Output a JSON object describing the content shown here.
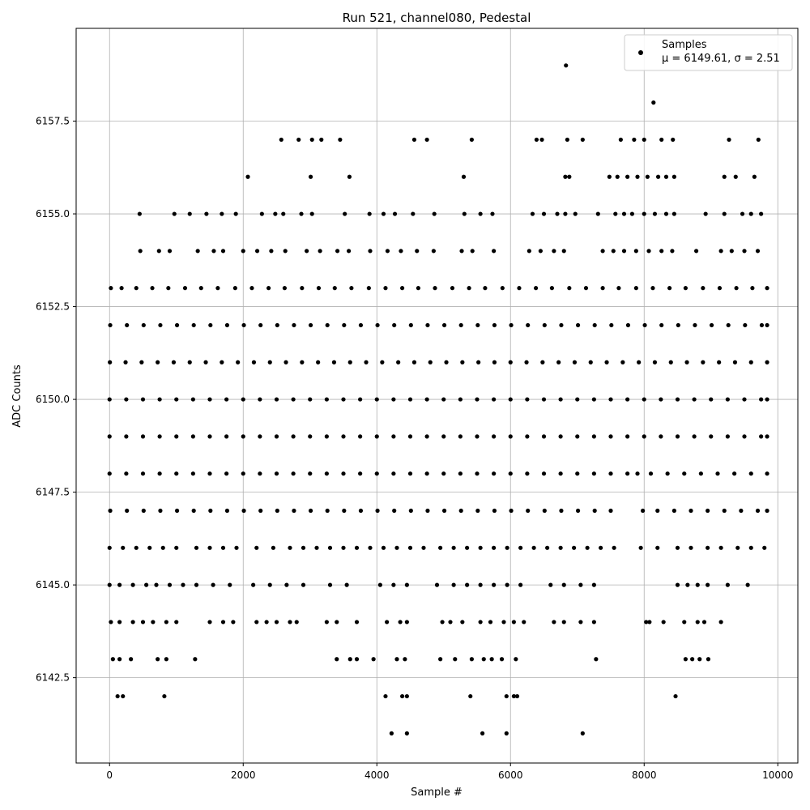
{
  "chart_data": {
    "type": "scatter",
    "title": "Run 521, channel080, Pedestal",
    "xlabel": "Sample #",
    "ylabel": "ADC Counts",
    "xlim": [
      -500,
      10300
    ],
    "ylim": [
      6140.2,
      6160.0
    ],
    "xticks": [
      0,
      2000,
      4000,
      6000,
      8000,
      10000
    ],
    "xtick_labels": [
      "0",
      "2000",
      "4000",
      "6000",
      "8000",
      "10000"
    ],
    "yticks": [
      6142.5,
      6145.0,
      6147.5,
      6150.0,
      6152.5,
      6155.0,
      6157.5
    ],
    "ytick_labels": [
      "6142.5",
      "6145.0",
      "6147.5",
      "6150.0",
      "6152.5",
      "6155.0",
      "6157.5"
    ],
    "grid": true,
    "legend": {
      "placement": "top-right",
      "label_line1": "Samples",
      "label_line2": "μ = 6149.61, σ = 2.51"
    },
    "marker_color": "#000000",
    "series": [
      {
        "name": "Samples",
        "x": [
          6830,
          8140,
          2570,
          2830,
          3030,
          3170,
          3450,
          4560,
          4750,
          5420,
          6390,
          6470,
          6850,
          7080,
          7650,
          7850,
          8000,
          8260,
          8430,
          9270,
          9710,
          2070,
          3010,
          3590,
          5300,
          6820,
          6880,
          7480,
          7600,
          7750,
          7900,
          8050,
          8210,
          8330,
          8450,
          9200,
          9370,
          9650,
          450,
          970,
          1200,
          1450,
          1680,
          1890,
          2280,
          2480,
          2600,
          2870,
          3030,
          3520,
          3890,
          4100,
          4270,
          4540,
          4860,
          5310,
          5550,
          5730,
          6330,
          6500,
          6700,
          6820,
          6970,
          7310,
          7570,
          7700,
          7820,
          8000,
          8160,
          8330,
          8450,
          8920,
          9200,
          9470,
          9600,
          9750,
          460,
          740,
          900,
          1320,
          1560,
          1700,
          2000,
          2210,
          2420,
          2630,
          2950,
          3150,
          3410,
          3580,
          3900,
          4160,
          4360,
          4600,
          4850,
          5270,
          5430,
          5750,
          6280,
          6450,
          6650,
          6800,
          7380,
          7540,
          7700,
          7880,
          8070,
          8260,
          8420,
          8780,
          9150,
          9310,
          9500,
          9700,
          20,
          180,
          400,
          640,
          880,
          1130,
          1370,
          1620,
          1880,
          2130,
          2380,
          2620,
          2880,
          3130,
          3370,
          3620,
          3880,
          4130,
          4380,
          4620,
          4870,
          5130,
          5380,
          5620,
          5880,
          6130,
          6380,
          6620,
          6880,
          7130,
          7380,
          7620,
          7880,
          8130,
          8380,
          8620,
          8880,
          9130,
          9380,
          9620,
          9840,
          10,
          260,
          510,
          760,
          1010,
          1260,
          1510,
          1760,
          2010,
          2260,
          2510,
          2760,
          3010,
          3260,
          3510,
          3760,
          4010,
          4260,
          4510,
          4760,
          5010,
          5260,
          5510,
          5760,
          6010,
          6260,
          6510,
          6760,
          7010,
          7260,
          7510,
          7760,
          8010,
          8260,
          8510,
          8760,
          9010,
          9260,
          9510,
          9760,
          9840,
          5,
          240,
          480,
          720,
          960,
          1200,
          1440,
          1680,
          1920,
          2160,
          2400,
          2640,
          2880,
          3120,
          3360,
          3600,
          3840,
          4080,
          4320,
          4560,
          4800,
          5040,
          5280,
          5520,
          5760,
          6000,
          6240,
          6480,
          6720,
          6960,
          7200,
          7440,
          7680,
          7920,
          8160,
          8400,
          8640,
          8880,
          9120,
          9360,
          9600,
          9840,
          0,
          250,
          500,
          750,
          1000,
          1250,
          1500,
          1750,
          2000,
          2250,
          2500,
          2750,
          3000,
          3250,
          3500,
          3750,
          4000,
          4250,
          4500,
          4750,
          5000,
          5250,
          5500,
          5750,
          6000,
          6250,
          6500,
          6750,
          7000,
          7250,
          7500,
          7750,
          8000,
          8250,
          8500,
          8750,
          9000,
          9250,
          9500,
          9750,
          9840,
          0,
          250,
          500,
          750,
          1000,
          1250,
          1500,
          1750,
          2000,
          2250,
          2500,
          2750,
          3000,
          3250,
          3500,
          3750,
          4000,
          4250,
          4500,
          4750,
          5000,
          5250,
          5500,
          5750,
          6000,
          6250,
          6500,
          6750,
          7000,
          7250,
          7500,
          7750,
          8000,
          8250,
          8500,
          8750,
          9000,
          9250,
          9500,
          9750,
          9840,
          0,
          250,
          500,
          750,
          1000,
          1250,
          1500,
          1750,
          2000,
          2250,
          2500,
          2750,
          3000,
          3250,
          3500,
          3750,
          4000,
          4250,
          4500,
          4750,
          5000,
          5250,
          5500,
          5750,
          6000,
          6250,
          6500,
          6750,
          7000,
          7250,
          7500,
          7750,
          7900,
          8100,
          8350,
          8600,
          8850,
          9100,
          9350,
          9600,
          9840,
          10,
          260,
          510,
          760,
          1010,
          1260,
          1510,
          1760,
          2010,
          2260,
          2510,
          2760,
          3010,
          3260,
          3510,
          3760,
          4010,
          4260,
          4510,
          4760,
          5010,
          5260,
          5510,
          5760,
          6010,
          6260,
          6510,
          6760,
          7010,
          7260,
          7500,
          7980,
          8200,
          8450,
          8700,
          8950,
          9200,
          9450,
          9700,
          9840,
          0,
          200,
          400,
          600,
          800,
          1000,
          1300,
          1500,
          1700,
          1900,
          2200,
          2450,
          2700,
          2900,
          3100,
          3300,
          3500,
          3700,
          3900,
          4100,
          4300,
          4500,
          4700,
          4950,
          5150,
          5350,
          5550,
          5750,
          5950,
          6150,
          6350,
          6550,
          6750,
          6950,
          7150,
          7350,
          7550,
          7950,
          8200,
          8500,
          8700,
          8950,
          9150,
          9400,
          9600,
          9800,
          0,
          150,
          350,
          550,
          700,
          900,
          1100,
          1300,
          1550,
          1800,
          2150,
          2400,
          2650,
          2900,
          3300,
          3550,
          4050,
          4250,
          4450,
          4900,
          5150,
          5350,
          5550,
          5750,
          5950,
          6150,
          6600,
          6800,
          7050,
          7250,
          8500,
          8650,
          8800,
          8950,
          9250,
          9550,
          20,
          150,
          350,
          500,
          650,
          850,
          1000,
          1500,
          1700,
          1850,
          2200,
          2350,
          2500,
          2700,
          2800,
          3250,
          3400,
          3700,
          4150,
          4350,
          4450,
          4980,
          5100,
          5280,
          5550,
          5700,
          5900,
          6050,
          6200,
          6650,
          6800,
          7050,
          7250,
          8030,
          8080,
          8290,
          8600,
          8800,
          8900,
          9150,
          50,
          150,
          320,
          720,
          850,
          1280,
          3400,
          3600,
          3700,
          3950,
          4300,
          4420,
          4950,
          5170,
          5420,
          5600,
          5720,
          5870,
          6080,
          7280,
          8620,
          8720,
          8830,
          8960,
          120,
          200,
          820,
          4130,
          4380,
          4450,
          5400,
          5940,
          6050,
          6100,
          8470,
          4220,
          4450,
          5580,
          5940,
          7080
        ],
        "y": [
          6159,
          6158,
          6157,
          6157,
          6157,
          6157,
          6157,
          6157,
          6157,
          6157,
          6157,
          6157,
          6157,
          6157,
          6157,
          6157,
          6157,
          6157,
          6157,
          6157,
          6157,
          6156,
          6156,
          6156,
          6156,
          6156,
          6156,
          6156,
          6156,
          6156,
          6156,
          6156,
          6156,
          6156,
          6156,
          6156,
          6156,
          6156,
          6155,
          6155,
          6155,
          6155,
          6155,
          6155,
          6155,
          6155,
          6155,
          6155,
          6155,
          6155,
          6155,
          6155,
          6155,
          6155,
          6155,
          6155,
          6155,
          6155,
          6155,
          6155,
          6155,
          6155,
          6155,
          6155,
          6155,
          6155,
          6155,
          6155,
          6155,
          6155,
          6155,
          6155,
          6155,
          6155,
          6155,
          6155,
          6154,
          6154,
          6154,
          6154,
          6154,
          6154,
          6154,
          6154,
          6154,
          6154,
          6154,
          6154,
          6154,
          6154,
          6154,
          6154,
          6154,
          6154,
          6154,
          6154,
          6154,
          6154,
          6154,
          6154,
          6154,
          6154,
          6154,
          6154,
          6154,
          6154,
          6154,
          6154,
          6154,
          6154,
          6154,
          6154,
          6154,
          6154,
          6153,
          6153,
          6153,
          6153,
          6153,
          6153,
          6153,
          6153,
          6153,
          6153,
          6153,
          6153,
          6153,
          6153,
          6153,
          6153,
          6153,
          6153,
          6153,
          6153,
          6153,
          6153,
          6153,
          6153,
          6153,
          6153,
          6153,
          6153,
          6153,
          6153,
          6153,
          6153,
          6153,
          6153,
          6153,
          6153,
          6153,
          6153,
          6153,
          6153,
          6153,
          6152,
          6152,
          6152,
          6152,
          6152,
          6152,
          6152,
          6152,
          6152,
          6152,
          6152,
          6152,
          6152,
          6152,
          6152,
          6152,
          6152,
          6152,
          6152,
          6152,
          6152,
          6152,
          6152,
          6152,
          6152,
          6152,
          6152,
          6152,
          6152,
          6152,
          6152,
          6152,
          6152,
          6152,
          6152,
          6152,
          6152,
          6152,
          6152,
          6152,
          6152,
          6151,
          6151,
          6151,
          6151,
          6151,
          6151,
          6151,
          6151,
          6151,
          6151,
          6151,
          6151,
          6151,
          6151,
          6151,
          6151,
          6151,
          6151,
          6151,
          6151,
          6151,
          6151,
          6151,
          6151,
          6151,
          6151,
          6151,
          6151,
          6151,
          6151,
          6151,
          6151,
          6151,
          6151,
          6151,
          6151,
          6151,
          6151,
          6151,
          6151,
          6151,
          6151,
          6150,
          6150,
          6150,
          6150,
          6150,
          6150,
          6150,
          6150,
          6150,
          6150,
          6150,
          6150,
          6150,
          6150,
          6150,
          6150,
          6150,
          6150,
          6150,
          6150,
          6150,
          6150,
          6150,
          6150,
          6150,
          6150,
          6150,
          6150,
          6150,
          6150,
          6150,
          6150,
          6150,
          6150,
          6150,
          6150,
          6150,
          6150,
          6150,
          6150,
          6150,
          6149,
          6149,
          6149,
          6149,
          6149,
          6149,
          6149,
          6149,
          6149,
          6149,
          6149,
          6149,
          6149,
          6149,
          6149,
          6149,
          6149,
          6149,
          6149,
          6149,
          6149,
          6149,
          6149,
          6149,
          6149,
          6149,
          6149,
          6149,
          6149,
          6149,
          6149,
          6149,
          6149,
          6149,
          6149,
          6149,
          6149,
          6149,
          6149,
          6149,
          6149,
          6148,
          6148,
          6148,
          6148,
          6148,
          6148,
          6148,
          6148,
          6148,
          6148,
          6148,
          6148,
          6148,
          6148,
          6148,
          6148,
          6148,
          6148,
          6148,
          6148,
          6148,
          6148,
          6148,
          6148,
          6148,
          6148,
          6148,
          6148,
          6148,
          6148,
          6148,
          6148,
          6148,
          6148,
          6148,
          6148,
          6148,
          6148,
          6148,
          6148,
          6148,
          6147,
          6147,
          6147,
          6147,
          6147,
          6147,
          6147,
          6147,
          6147,
          6147,
          6147,
          6147,
          6147,
          6147,
          6147,
          6147,
          6147,
          6147,
          6147,
          6147,
          6147,
          6147,
          6147,
          6147,
          6147,
          6147,
          6147,
          6147,
          6147,
          6147,
          6147,
          6147,
          6147,
          6147,
          6147,
          6147,
          6147,
          6147,
          6147,
          6147,
          6146,
          6146,
          6146,
          6146,
          6146,
          6146,
          6146,
          6146,
          6146,
          6146,
          6146,
          6146,
          6146,
          6146,
          6146,
          6146,
          6146,
          6146,
          6146,
          6146,
          6146,
          6146,
          6146,
          6146,
          6146,
          6146,
          6146,
          6146,
          6146,
          6146,
          6146,
          6146,
          6146,
          6146,
          6146,
          6146,
          6146,
          6146,
          6146,
          6146,
          6146,
          6146,
          6146,
          6146,
          6146,
          6146,
          6145,
          6145,
          6145,
          6145,
          6145,
          6145,
          6145,
          6145,
          6145,
          6145,
          6145,
          6145,
          6145,
          6145,
          6145,
          6145,
          6145,
          6145,
          6145,
          6145,
          6145,
          6145,
          6145,
          6145,
          6145,
          6145,
          6145,
          6145,
          6145,
          6145,
          6145,
          6145,
          6145,
          6145,
          6145,
          6145,
          6144,
          6144,
          6144,
          6144,
          6144,
          6144,
          6144,
          6144,
          6144,
          6144,
          6144,
          6144,
          6144,
          6144,
          6144,
          6144,
          6144,
          6144,
          6144,
          6144,
          6144,
          6144,
          6144,
          6144,
          6144,
          6144,
          6144,
          6144,
          6144,
          6144,
          6144,
          6144,
          6144,
          6144,
          6144,
          6144,
          6144,
          6144,
          6144,
          6144,
          6143,
          6143,
          6143,
          6143,
          6143,
          6143,
          6143,
          6143,
          6143,
          6143,
          6143,
          6143,
          6143,
          6143,
          6143,
          6143,
          6143,
          6143,
          6143,
          6143,
          6143,
          6143,
          6143,
          6143,
          6142,
          6142,
          6142,
          6142,
          6142,
          6142,
          6142,
          6142,
          6142,
          6142,
          6142,
          6141,
          6141,
          6141,
          6141,
          6141
        ]
      }
    ]
  }
}
